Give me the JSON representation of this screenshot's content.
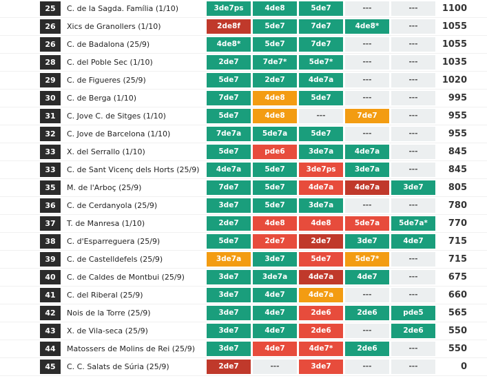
{
  "table": {
    "rows": [
      {
        "rank": 25,
        "team": "C. de la Sagda. Família (1/10)",
        "attempts": [
          {
            "text": "3de7ps",
            "color": "#1a9e7c"
          },
          {
            "text": "4de8",
            "color": "#1a9e7c"
          },
          {
            "text": "5de7",
            "color": "#1a9e7c"
          },
          {
            "text": "---",
            "color": "#eceff0"
          },
          {
            "text": "---",
            "color": "#eceff0"
          }
        ],
        "points": 1100
      },
      {
        "rank": 26,
        "team": "Xics de Granollers (1/10)",
        "attempts": [
          {
            "text": "2de8f",
            "color": "#c0392b"
          },
          {
            "text": "5de7",
            "color": "#1a9e7c"
          },
          {
            "text": "7de7",
            "color": "#1a9e7c"
          },
          {
            "text": "4de8*",
            "color": "#1a9e7c"
          },
          {
            "text": "---",
            "color": "#eceff0"
          }
        ],
        "points": 1055
      },
      {
        "rank": 26,
        "team": "C. de Badalona (25/9)",
        "attempts": [
          {
            "text": "4de8*",
            "color": "#1a9e7c"
          },
          {
            "text": "5de7",
            "color": "#1a9e7c"
          },
          {
            "text": "7de7",
            "color": "#1a9e7c"
          },
          {
            "text": "---",
            "color": "#eceff0"
          },
          {
            "text": "---",
            "color": "#eceff0"
          }
        ],
        "points": 1055
      },
      {
        "rank": 28,
        "team": "C. del Poble Sec (1/10)",
        "attempts": [
          {
            "text": "2de7",
            "color": "#1a9e7c"
          },
          {
            "text": "7de7*",
            "color": "#1a9e7c"
          },
          {
            "text": "5de7*",
            "color": "#1a9e7c"
          },
          {
            "text": "---",
            "color": "#eceff0"
          },
          {
            "text": "---",
            "color": "#eceff0"
          }
        ],
        "points": 1035
      },
      {
        "rank": 29,
        "team": "C. de Figueres (25/9)",
        "attempts": [
          {
            "text": "5de7",
            "color": "#1a9e7c"
          },
          {
            "text": "2de7",
            "color": "#1a9e7c"
          },
          {
            "text": "4de7a",
            "color": "#1a9e7c"
          },
          {
            "text": "---",
            "color": "#eceff0"
          },
          {
            "text": "---",
            "color": "#eceff0"
          }
        ],
        "points": 1020
      },
      {
        "rank": 30,
        "team": "C. de Berga (1/10)",
        "attempts": [
          {
            "text": "7de7",
            "color": "#1a9e7c"
          },
          {
            "text": "4de8",
            "color": "#f39c12"
          },
          {
            "text": "5de7",
            "color": "#1a9e7c"
          },
          {
            "text": "---",
            "color": "#eceff0"
          },
          {
            "text": "---",
            "color": "#eceff0"
          }
        ],
        "points": 995
      },
      {
        "rank": 31,
        "team": "C. Jove C. de Sitges (1/10)",
        "attempts": [
          {
            "text": "5de7",
            "color": "#1a9e7c"
          },
          {
            "text": "4de8",
            "color": "#f39c12"
          },
          {
            "text": "---",
            "color": "#eceff0"
          },
          {
            "text": "7de7",
            "color": "#f39c12"
          },
          {
            "text": "---",
            "color": "#eceff0"
          }
        ],
        "points": 955
      },
      {
        "rank": 32,
        "team": "C. Jove de Barcelona (1/10)",
        "attempts": [
          {
            "text": "7de7a",
            "color": "#1a9e7c"
          },
          {
            "text": "5de7a",
            "color": "#1a9e7c"
          },
          {
            "text": "5de7",
            "color": "#1a9e7c"
          },
          {
            "text": "---",
            "color": "#eceff0"
          },
          {
            "text": "---",
            "color": "#eceff0"
          }
        ],
        "points": 955
      },
      {
        "rank": 33,
        "team": "X. del Serrallo (1/10)",
        "attempts": [
          {
            "text": "5de7",
            "color": "#1a9e7c"
          },
          {
            "text": "pde6",
            "color": "#e74c3c"
          },
          {
            "text": "3de7a",
            "color": "#1a9e7c"
          },
          {
            "text": "4de7a",
            "color": "#1a9e7c"
          },
          {
            "text": "---",
            "color": "#eceff0"
          }
        ],
        "points": 845
      },
      {
        "rank": 33,
        "team": "C. de Sant Vicenç dels Horts (25/9)",
        "attempts": [
          {
            "text": "4de7a",
            "color": "#1a9e7c"
          },
          {
            "text": "5de7",
            "color": "#1a9e7c"
          },
          {
            "text": "3de7ps",
            "color": "#e74c3c"
          },
          {
            "text": "3de7a",
            "color": "#1a9e7c"
          },
          {
            "text": "---",
            "color": "#eceff0"
          }
        ],
        "points": 845
      },
      {
        "rank": 35,
        "team": "M. de l'Arboç (25/9)",
        "attempts": [
          {
            "text": "7de7",
            "color": "#1a9e7c"
          },
          {
            "text": "5de7",
            "color": "#1a9e7c"
          },
          {
            "text": "4de7a",
            "color": "#e74c3c"
          },
          {
            "text": "4de7a",
            "color": "#c0392b"
          },
          {
            "text": "3de7",
            "color": "#1a9e7c"
          }
        ],
        "points": 805
      },
      {
        "rank": 36,
        "team": "C. de Cerdanyola (25/9)",
        "attempts": [
          {
            "text": "3de7",
            "color": "#1a9e7c"
          },
          {
            "text": "5de7",
            "color": "#1a9e7c"
          },
          {
            "text": "3de7a",
            "color": "#1a9e7c"
          },
          {
            "text": "---",
            "color": "#eceff0"
          },
          {
            "text": "---",
            "color": "#eceff0"
          }
        ],
        "points": 780
      },
      {
        "rank": 37,
        "team": "T. de Manresa (1/10)",
        "attempts": [
          {
            "text": "2de7",
            "color": "#1a9e7c"
          },
          {
            "text": "4de8",
            "color": "#e74c3c"
          },
          {
            "text": "4de8",
            "color": "#e74c3c"
          },
          {
            "text": "5de7a",
            "color": "#e74c3c"
          },
          {
            "text": "5de7a*",
            "color": "#1a9e7c"
          }
        ],
        "points": 770
      },
      {
        "rank": 38,
        "team": "C. d'Esparreguera (25/9)",
        "attempts": [
          {
            "text": "5de7",
            "color": "#1a9e7c"
          },
          {
            "text": "2de7",
            "color": "#e74c3c"
          },
          {
            "text": "2de7",
            "color": "#c0392b"
          },
          {
            "text": "3de7",
            "color": "#1a9e7c"
          },
          {
            "text": "4de7",
            "color": "#1a9e7c"
          }
        ],
        "points": 715
      },
      {
        "rank": 39,
        "team": "C. de Castelldefels (25/9)",
        "attempts": [
          {
            "text": "3de7a",
            "color": "#f39c12"
          },
          {
            "text": "3de7",
            "color": "#1a9e7c"
          },
          {
            "text": "5de7",
            "color": "#e74c3c"
          },
          {
            "text": "5de7*",
            "color": "#f39c12"
          },
          {
            "text": "---",
            "color": "#eceff0"
          }
        ],
        "points": 715
      },
      {
        "rank": 40,
        "team": "C. de Caldes de Montbui (25/9)",
        "attempts": [
          {
            "text": "3de7",
            "color": "#1a9e7c"
          },
          {
            "text": "3de7a",
            "color": "#1a9e7c"
          },
          {
            "text": "4de7a",
            "color": "#c0392b"
          },
          {
            "text": "4de7",
            "color": "#1a9e7c"
          },
          {
            "text": "---",
            "color": "#eceff0"
          }
        ],
        "points": 675
      },
      {
        "rank": 41,
        "team": "C. del Riberal (25/9)",
        "attempts": [
          {
            "text": "3de7",
            "color": "#1a9e7c"
          },
          {
            "text": "4de7",
            "color": "#1a9e7c"
          },
          {
            "text": "4de7a",
            "color": "#f39c12"
          },
          {
            "text": "---",
            "color": "#eceff0"
          },
          {
            "text": "---",
            "color": "#eceff0"
          }
        ],
        "points": 660
      },
      {
        "rank": 42,
        "team": "Nois de la Torre (25/9)",
        "attempts": [
          {
            "text": "3de7",
            "color": "#1a9e7c"
          },
          {
            "text": "4de7",
            "color": "#1a9e7c"
          },
          {
            "text": "2de6",
            "color": "#e74c3c"
          },
          {
            "text": "2de6",
            "color": "#1a9e7c"
          },
          {
            "text": "pde5",
            "color": "#1a9e7c"
          }
        ],
        "points": 565
      },
      {
        "rank": 43,
        "team": "X. de Vila-seca (25/9)",
        "attempts": [
          {
            "text": "3de7",
            "color": "#1a9e7c"
          },
          {
            "text": "4de7",
            "color": "#1a9e7c"
          },
          {
            "text": "2de6",
            "color": "#e74c3c"
          },
          {
            "text": "---",
            "color": "#eceff0"
          },
          {
            "text": "2de6",
            "color": "#1a9e7c"
          }
        ],
        "points": 550
      },
      {
        "rank": 44,
        "team": "Matossers de Molins de Rei (25/9)",
        "attempts": [
          {
            "text": "3de7",
            "color": "#1a9e7c"
          },
          {
            "text": "4de7",
            "color": "#e74c3c"
          },
          {
            "text": "4de7*",
            "color": "#e74c3c"
          },
          {
            "text": "2de6",
            "color": "#1a9e7c"
          },
          {
            "text": "---",
            "color": "#eceff0"
          }
        ],
        "points": 550
      },
      {
        "rank": 45,
        "team": "C. C. Salats de Súria (25/9)",
        "attempts": [
          {
            "text": "2de7",
            "color": "#c0392b"
          },
          {
            "text": "---",
            "color": "#eceff0"
          },
          {
            "text": "3de7",
            "color": "#e74c3c"
          },
          {
            "text": "---",
            "color": "#eceff0"
          },
          {
            "text": "---",
            "color": "#eceff0"
          }
        ],
        "points": 0
      }
    ]
  }
}
